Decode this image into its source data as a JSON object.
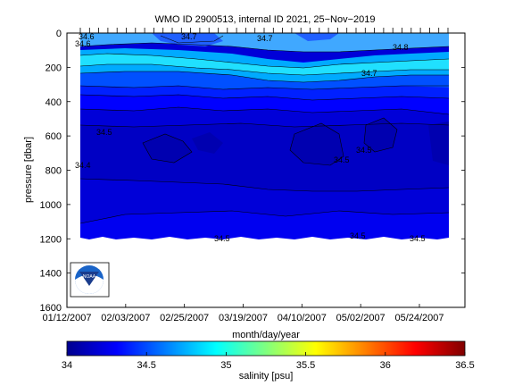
{
  "chart_data": {
    "type": "heatmap",
    "title": "WMO ID 2900513, internal ID 2021, 25−Nov−2019",
    "xlabel": "month/day/year",
    "ylabel": "pressure [dbar]",
    "x_ticks": [
      "01/12/2007",
      "02/03/2007",
      "02/25/2007",
      "03/19/2007",
      "04/10/2007",
      "05/02/2007",
      "05/24/2007"
    ],
    "y_ticks": [
      "0",
      "200",
      "400",
      "600",
      "800",
      "1000",
      "1200",
      "1400",
      "1600"
    ],
    "ylim": [
      0,
      1600
    ],
    "y_reversed": true,
    "colorbar": {
      "label": "salinity [psu]",
      "ticks": [
        "34",
        "34.5",
        "35",
        "35.5",
        "36",
        "36.5"
      ],
      "range": [
        34,
        36.5
      ],
      "colormap": [
        "#00008f",
        "#0000ff",
        "#00ffff",
        "#ffff00",
        "#ff0000",
        "#800000"
      ]
    },
    "contour_labels": [
      "34.6",
      "34.6",
      "34.7",
      "34.7",
      "34.8",
      "34.7",
      "34.5",
      "34.4",
      "34.5",
      "34.5",
      "34.5",
      "34.5",
      "34.5"
    ],
    "bands_by_depth": [
      {
        "pressure": 0,
        "salinity": 34.62
      },
      {
        "pressure": 100,
        "salinity": 34.78
      },
      {
        "pressure": 180,
        "salinity": 34.88
      },
      {
        "pressure": 260,
        "salinity": 34.72
      },
      {
        "pressure": 350,
        "salinity": 34.6
      },
      {
        "pressure": 450,
        "salinity": 34.46
      },
      {
        "pressure": 650,
        "salinity": 34.42
      },
      {
        "pressure": 850,
        "salinity": 34.44
      },
      {
        "pressure": 1000,
        "salinity": 34.5
      },
      {
        "pressure": 1200,
        "salinity": 34.55
      }
    ],
    "logo": "NOAA"
  },
  "colors": {
    "axis": "#000000",
    "background": "#ffffff"
  }
}
